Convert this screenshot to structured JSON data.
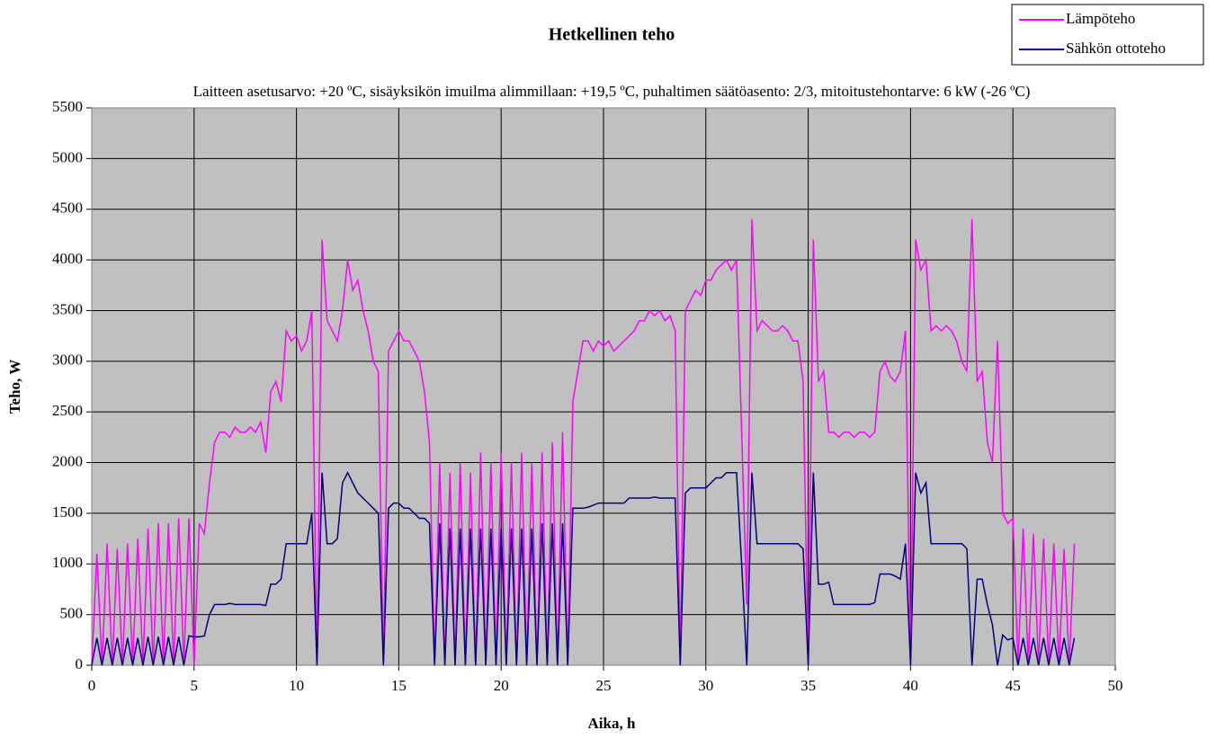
{
  "chart_data": {
    "type": "line",
    "title": "Hetkellinen teho",
    "subtitle": "Laitteen asetusarvo: +20 ºC, sisäyksikön imuilma alimmillaan: +19,5 ºC, puhaltimen säätöasento: 2/3, mitoitustehontarve: 6 kW (-26 ºC)",
    "x_label": "Aika, h",
    "y_label": "Teho, W",
    "xlim": [
      0,
      50
    ],
    "xticks": [
      0,
      5,
      10,
      15,
      20,
      25,
      30,
      35,
      40,
      45,
      50
    ],
    "ylim": [
      0,
      5500
    ],
    "yticks": [
      0,
      500,
      1000,
      1500,
      2000,
      2500,
      3000,
      3500,
      4000,
      4500,
      5000,
      5500
    ],
    "grid": true,
    "legend": "top-right",
    "background": "#c0c0c0",
    "x": [
      0,
      0.25,
      0.5,
      0.75,
      1,
      1.25,
      1.5,
      1.75,
      2,
      2.25,
      2.5,
      2.75,
      3,
      3.25,
      3.5,
      3.75,
      4,
      4.25,
      4.5,
      4.75,
      5,
      5.25,
      5.5,
      5.75,
      6,
      6.25,
      6.5,
      6.75,
      7,
      7.25,
      7.5,
      7.75,
      8,
      8.25,
      8.5,
      8.75,
      9,
      9.25,
      9.5,
      9.75,
      10,
      10.25,
      10.5,
      10.75,
      11,
      11.25,
      11.5,
      11.75,
      12,
      12.25,
      12.5,
      12.75,
      13,
      13.25,
      13.5,
      13.75,
      14,
      14.25,
      14.5,
      14.75,
      15,
      15.25,
      15.5,
      15.75,
      16,
      16.25,
      16.5,
      16.75,
      17,
      17.25,
      17.5,
      17.75,
      18,
      18.25,
      18.5,
      18.75,
      19,
      19.25,
      19.5,
      19.75,
      20,
      20.25,
      20.5,
      20.75,
      21,
      21.25,
      21.5,
      21.75,
      22,
      22.25,
      22.5,
      22.75,
      23,
      23.25,
      23.5,
      23.75,
      24,
      24.25,
      24.5,
      24.75,
      25,
      25.25,
      25.5,
      25.75,
      26,
      26.25,
      26.5,
      26.75,
      27,
      27.25,
      27.5,
      27.75,
      28,
      28.25,
      28.5,
      28.75,
      29,
      29.25,
      29.5,
      29.75,
      30,
      30.25,
      30.5,
      30.75,
      31,
      31.25,
      31.5,
      31.75,
      32,
      32.25,
      32.5,
      32.75,
      33,
      33.25,
      33.5,
      33.75,
      34,
      34.25,
      34.5,
      34.75,
      35,
      35.25,
      35.5,
      35.75,
      36,
      36.25,
      36.5,
      36.75,
      37,
      37.25,
      37.5,
      37.75,
      38,
      38.25,
      38.5,
      38.75,
      39,
      39.25,
      39.5,
      39.75,
      40,
      40.25,
      40.5,
      40.75,
      41,
      41.25,
      41.5,
      41.75,
      42,
      42.25,
      42.5,
      42.75,
      43,
      43.25,
      43.5,
      43.75,
      44,
      44.25,
      44.5,
      44.75,
      45,
      45.25,
      45.5,
      45.75,
      46,
      46.25,
      46.5,
      46.75,
      47,
      47.25,
      47.5,
      47.75,
      48
    ],
    "series": [
      {
        "name": "Lämpöteho",
        "color": "#ff00ff",
        "values": [
          0,
          1100,
          0,
          1200,
          0,
          1150,
          0,
          1200,
          0,
          1250,
          0,
          1350,
          0,
          1400,
          0,
          1400,
          0,
          1450,
          0,
          1450,
          0,
          1400,
          1300,
          1800,
          2200,
          2300,
          2300,
          2250,
          2350,
          2300,
          2300,
          2350,
          2300,
          2400,
          2100,
          2700,
          2800,
          2600,
          3300,
          3200,
          3250,
          3100,
          3200,
          3500,
          0,
          4200,
          3400,
          3300,
          3200,
          3500,
          4000,
          3700,
          3800,
          3500,
          3300,
          3000,
          2900,
          0,
          3100,
          3200,
          3300,
          3200,
          3200,
          3100,
          3000,
          2700,
          2200,
          0,
          2000,
          0,
          1900,
          0,
          2000,
          0,
          1900,
          0,
          2100,
          0,
          2000,
          0,
          2100,
          0,
          2000,
          0,
          2100,
          0,
          2000,
          0,
          2100,
          0,
          2200,
          0,
          2300,
          0,
          2600,
          2900,
          3200,
          3200,
          3100,
          3200,
          3150,
          3200,
          3100,
          3150,
          3200,
          3250,
          3300,
          3400,
          3400,
          3500,
          3450,
          3500,
          3400,
          3450,
          3300,
          0,
          3500,
          3600,
          3700,
          3650,
          3800,
          3800,
          3900,
          3950,
          4000,
          3900,
          4000,
          2300,
          600,
          4400,
          3300,
          3400,
          3350,
          3300,
          3300,
          3350,
          3300,
          3200,
          3200,
          2800,
          0,
          4200,
          2800,
          2900,
          2300,
          2300,
          2250,
          2300,
          2300,
          2250,
          2300,
          2300,
          2250,
          2300,
          2900,
          3000,
          2850,
          2800,
          2900,
          3300,
          0,
          4200,
          3900,
          4000,
          3300,
          3350,
          3300,
          3350,
          3300,
          3200,
          3000,
          2900,
          4400,
          2800,
          2900,
          2200,
          2000,
          3200,
          1500,
          1400,
          1450,
          0,
          1350,
          0,
          1300,
          0,
          1250,
          0,
          1200,
          0,
          1150,
          0,
          1200
        ]
      },
      {
        "name": "Sähkön ottoteho",
        "color": "#000080",
        "values": [
          0,
          270,
          0,
          270,
          0,
          270,
          0,
          270,
          0,
          270,
          0,
          280,
          0,
          280,
          0,
          280,
          0,
          280,
          0,
          290,
          280,
          280,
          290,
          500,
          600,
          600,
          600,
          610,
          600,
          600,
          600,
          600,
          600,
          600,
          590,
          800,
          800,
          850,
          1200,
          1200,
          1200,
          1200,
          1200,
          1500,
          0,
          1900,
          1200,
          1200,
          1250,
          1800,
          1900,
          1800,
          1700,
          1650,
          1600,
          1550,
          1500,
          0,
          1550,
          1600,
          1600,
          1550,
          1550,
          1500,
          1450,
          1450,
          1400,
          0,
          1400,
          0,
          1350,
          0,
          1350,
          0,
          1350,
          0,
          1350,
          0,
          1350,
          0,
          1350,
          0,
          1350,
          0,
          1350,
          0,
          1350,
          0,
          1400,
          0,
          1400,
          0,
          1400,
          0,
          1550,
          1550,
          1550,
          1560,
          1580,
          1600,
          1600,
          1600,
          1600,
          1600,
          1600,
          1650,
          1650,
          1650,
          1650,
          1650,
          1660,
          1650,
          1650,
          1650,
          1650,
          0,
          1700,
          1750,
          1750,
          1750,
          1750,
          1800,
          1850,
          1850,
          1900,
          1900,
          1900,
          1000,
          0,
          1900,
          1200,
          1200,
          1200,
          1200,
          1200,
          1200,
          1200,
          1200,
          1200,
          1150,
          0,
          1900,
          800,
          800,
          820,
          600,
          600,
          600,
          600,
          600,
          600,
          600,
          600,
          620,
          900,
          900,
          900,
          880,
          850,
          1200,
          0,
          1900,
          1700,
          1800,
          1200,
          1200,
          1200,
          1200,
          1200,
          1200,
          1200,
          1150,
          0,
          850,
          850,
          600,
          400,
          0,
          300,
          250,
          270,
          0,
          270,
          0,
          270,
          0,
          270,
          0,
          270,
          0,
          270,
          0,
          270
        ]
      }
    ]
  }
}
